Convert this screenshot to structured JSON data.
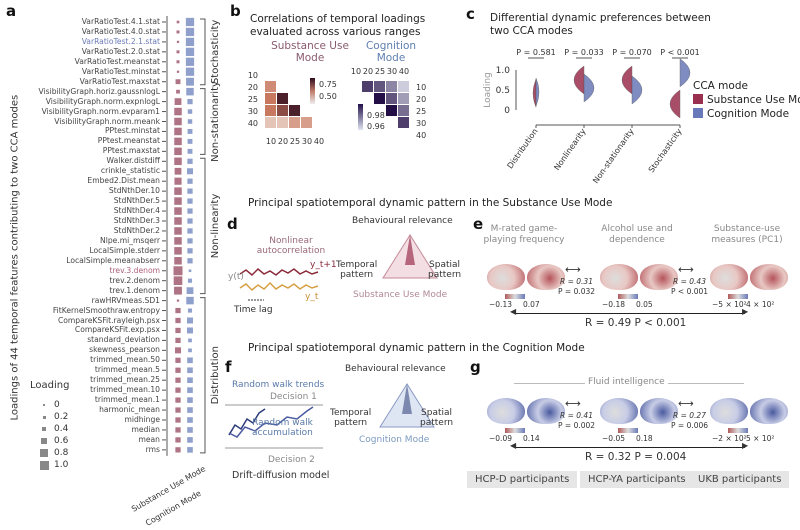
{
  "panel_a": {
    "label": "a",
    "y_title": "Loadings of 44 temporal features contributing to two CCA modes",
    "columns": [
      "Substance Use Mode",
      "Cognition Mode"
    ],
    "colors": {
      "substance": "#a05a6e",
      "cognition": "#7b8fc4"
    },
    "groups": [
      {
        "name": "Stochasticity",
        "start": 0,
        "end": 6
      },
      {
        "name": "Non-stationarity",
        "start": 7,
        "end": 13
      },
      {
        "name": "Non-linearity",
        "start": 14,
        "end": 27
      },
      {
        "name": "Distribution",
        "start": 28,
        "end": 43
      }
    ],
    "features": [
      {
        "name": "VarRatioTest.4.1.stat",
        "substance": 0.15,
        "cognition": 0.9
      },
      {
        "name": "VarRatioTest.4.0.stat",
        "substance": 0.2,
        "cognition": 0.9
      },
      {
        "name": "VarRatioTest.2.1.stat",
        "substance": 0.1,
        "cognition": 0.9,
        "highlight": "cognition"
      },
      {
        "name": "VarRatioTest.2.0.stat",
        "substance": 0.2,
        "cognition": 0.9
      },
      {
        "name": "VarRatioTest.meanstat",
        "substance": 0.2,
        "cognition": 0.9
      },
      {
        "name": "VarRatioTest.minstat",
        "substance": 0.1,
        "cognition": 0.9
      },
      {
        "name": "VarRatioTest.maxstat",
        "substance": 0.45,
        "cognition": 0.85
      },
      {
        "name": "VisibilityGraph.horiz.gaussnlogL",
        "substance": 0.3,
        "cognition": 0.8
      },
      {
        "name": "VisibilityGraph.norm.expnlogL",
        "substance": 0.7,
        "cognition": 0.5
      },
      {
        "name": "VisibilityGraph.norm.evparam1",
        "substance": 0.8,
        "cognition": 0.4
      },
      {
        "name": "VisibilityGraph.norm.meank",
        "substance": 0.8,
        "cognition": 0.4
      },
      {
        "name": "PPtest.minstat",
        "substance": 0.8,
        "cognition": 0.45
      },
      {
        "name": "PPtest.meanstat",
        "substance": 0.8,
        "cognition": 0.45
      },
      {
        "name": "PPtest.maxstat",
        "substance": 0.8,
        "cognition": 0.45
      },
      {
        "name": "Walker.distdiff",
        "substance": 0.8,
        "cognition": 0.5
      },
      {
        "name": "crinkle_statistic",
        "substance": 0.7,
        "cognition": 0.6
      },
      {
        "name": "Embed2.Dist.mean",
        "substance": 0.75,
        "cognition": 0.5
      },
      {
        "name": "StdNthDer.10",
        "substance": 0.8,
        "cognition": 0.5
      },
      {
        "name": "StdNthDer.5",
        "substance": 0.8,
        "cognition": 0.5
      },
      {
        "name": "StdNthDer.4",
        "substance": 0.8,
        "cognition": 0.5
      },
      {
        "name": "StdNthDer.3",
        "substance": 0.8,
        "cognition": 0.5
      },
      {
        "name": "StdNthDer.2",
        "substance": 0.8,
        "cognition": 0.5
      },
      {
        "name": "Nlpe.mi_msqerr",
        "substance": 0.8,
        "cognition": 0.5
      },
      {
        "name": "LocalSimple.stderr",
        "substance": 0.8,
        "cognition": 0.5
      },
      {
        "name": "LocalSimple.meanabserr",
        "substance": 0.8,
        "cognition": 0.5
      },
      {
        "name": "trev.3.denom",
        "substance": 1.0,
        "cognition": 0.15,
        "highlight": "substance"
      },
      {
        "name": "trev.2.denom",
        "substance": 0.95,
        "cognition": 0.35
      },
      {
        "name": "trev.1.denom",
        "substance": 0.85,
        "cognition": 0.7
      },
      {
        "name": "rawHRVmeas.SD1",
        "substance": 0.1,
        "cognition": 0.8
      },
      {
        "name": "FitKernelSmoothraw.entropy",
        "substance": 0.5,
        "cognition": 0.35
      },
      {
        "name": "CompareKSFit.rayleigh.psx",
        "substance": 0.5,
        "cognition": 0.6
      },
      {
        "name": "CompareKSFit.exp.psx",
        "substance": 0.5,
        "cognition": 0.6
      },
      {
        "name": "standard_deviation",
        "substance": 0.5,
        "cognition": 0.3
      },
      {
        "name": "skewness_pearson",
        "substance": 0.6,
        "cognition": 0.3
      },
      {
        "name": "trimmed_mean.50",
        "substance": 0.5,
        "cognition": 0.55
      },
      {
        "name": "trimmed_mean.5",
        "substance": 0.5,
        "cognition": 0.55
      },
      {
        "name": "trimmed_mean.25",
        "substance": 0.5,
        "cognition": 0.55
      },
      {
        "name": "trimmed_mean.10",
        "substance": 0.5,
        "cognition": 0.55
      },
      {
        "name": "trimmed_mean.1",
        "substance": 0.5,
        "cognition": 0.55
      },
      {
        "name": "harmonic_mean",
        "substance": 0.5,
        "cognition": 0.55
      },
      {
        "name": "midhinge",
        "substance": 0.5,
        "cognition": 0.55
      },
      {
        "name": "median",
        "substance": 0.5,
        "cognition": 0.55
      },
      {
        "name": "mean",
        "substance": 0.5,
        "cognition": 0.55
      },
      {
        "name": "rms",
        "substance": 0.5,
        "cognition": 0.55
      }
    ],
    "legend": {
      "title": "Loading",
      "levels": [
        "0",
        "0.2",
        "0.4",
        "0.6",
        "0.8",
        "1.0"
      ]
    }
  },
  "panel_b": {
    "label": "b",
    "title_1": "Correlations of temporal loadings",
    "title_2": "evaluated across various ranges",
    "substance": {
      "title_1": "Substance Use",
      "title_2": "Mode",
      "ticks": [
        "10",
        "20",
        "25",
        "30",
        "40"
      ],
      "colorbar": [
        "0.75",
        "0.50"
      ],
      "cells": [
        [
          1,
          0,
          0.6
        ],
        [
          2,
          0,
          0.65
        ],
        [
          2,
          1,
          0.85
        ],
        [
          3,
          0,
          0.65
        ],
        [
          3,
          1,
          0.75
        ],
        [
          3,
          2,
          0.85
        ],
        [
          4,
          0,
          0.45
        ],
        [
          4,
          1,
          0.45
        ],
        [
          4,
          2,
          0.55
        ],
        [
          4,
          3,
          0.55
        ]
      ]
    },
    "cognition": {
      "title_1": "Cognition",
      "title_2": "Mode",
      "ticks": [
        "10",
        "20",
        "25",
        "30",
        "40"
      ],
      "colorbar": [
        "0.98",
        "0.96"
      ],
      "cells": [
        [
          0,
          1,
          0.99
        ],
        [
          0,
          2,
          0.985
        ],
        [
          0,
          3,
          0.975
        ],
        [
          0,
          4,
          0.96
        ],
        [
          1,
          2,
          1.0
        ],
        [
          1,
          3,
          0.985
        ],
        [
          1,
          4,
          0.97
        ],
        [
          2,
          3,
          1.0
        ],
        [
          2,
          4,
          0.98
        ],
        [
          3,
          4,
          0.99
        ]
      ]
    }
  },
  "panel_c": {
    "label": "c",
    "title_1": "Differential dynamic preferences between",
    "title_2": "two CCA modes",
    "chart_data": {
      "type": "violin",
      "ylabel": "Loading",
      "yticks": [
        "0",
        "0.5",
        "1.0"
      ],
      "ylim": [
        0,
        1.1
      ],
      "categories": [
        "Distribution",
        "Nonlinearity",
        "Non-stationarity",
        "Stochasticity"
      ],
      "p_values": [
        "P = 0.581",
        "P = 0.033",
        "P = 0.070",
        "P < 0.001"
      ],
      "series": [
        {
          "name": "Substance Use Mode",
          "color": "#9a3050",
          "medians": [
            0.42,
            0.75,
            0.75,
            0.15
          ]
        },
        {
          "name": "Cognition Mode",
          "color": "#6878b8",
          "medians": [
            0.45,
            0.55,
            0.5,
            0.93
          ]
        }
      ],
      "legend_title": "CCA mode",
      "legend": "right"
    }
  },
  "section_1": "Principal spatiotemporal dynamic pattern in the Substance Use Mode",
  "panel_d": {
    "label": "d",
    "signal_title_1": "Nonlinear",
    "signal_title_2": "autocorrelation",
    "y_t": "y(t)",
    "y_t1": "y_t+1",
    "y_t0": "y_t",
    "time_lag": "Time lag",
    "relevance": "Behavioural relevance",
    "temporal_1": "Temporal",
    "temporal_2": "pattern",
    "spatial_1": "Spatial",
    "spatial_2": "pattern",
    "mode": "Substance Use Mode"
  },
  "panel_e": {
    "label": "e",
    "maps": [
      {
        "title_1": "M-rated game-",
        "title_2": "playing frequency",
        "min": "−0.13",
        "max": "0.07"
      },
      {
        "title_1": "Alcohol use and",
        "title_2": "dependence",
        "min": "−0.18",
        "max": "0.05"
      },
      {
        "title_1": "Substance-use",
        "title_2": "measures (PC1)",
        "min": "−5 × 10²",
        "max": "4 × 10²"
      }
    ],
    "pair_stats": [
      {
        "r": "R = 0.31",
        "p": "P = 0.032"
      },
      {
        "r": "R = 0.43",
        "p": "P < 0.001"
      }
    ],
    "overall": "R = 0.49  P < 0.001"
  },
  "section_2": "Principal spatiotemporal dynamic pattern in the Cognition Mode",
  "panel_f": {
    "label": "f",
    "trends": "Random walk trends",
    "decision_1": "Decision 1",
    "accum_1": "Random walk",
    "accum_2": "accumulation",
    "decision_2": "Decision 2",
    "model": "Drift-diffusion model",
    "relevance": "Behavioural relevance",
    "temporal_1": "Temporal",
    "temporal_2": "pattern",
    "spatial_1": "Spatial",
    "spatial_2": "pattern",
    "mode": "Cognition Mode"
  },
  "panel_g": {
    "label": "g",
    "title": "Fluid intelligence",
    "maps": [
      {
        "min": "−0.09",
        "max": "0.14",
        "cohort": "HCP-D participants"
      },
      {
        "min": "−0.05",
        "max": "0.18",
        "cohort": "HCP-YA participants"
      },
      {
        "min": "−2 × 10²",
        "max": "5 × 10²",
        "cohort": "UKB participants"
      }
    ],
    "pair_stats": [
      {
        "r": "R = 0.41",
        "p": "P = 0.002"
      },
      {
        "r": "R = 0.27",
        "p": "P = 0.006"
      }
    ],
    "overall": "R = 0.32  P = 0.004"
  }
}
